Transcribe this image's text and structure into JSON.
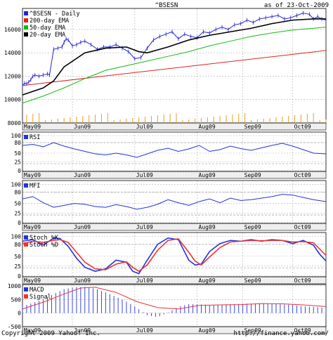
{
  "header": {
    "ticker": "^BSESN",
    "date_label": "as of 23-Oct-2009"
  },
  "footer": {
    "copyright": "Copyright 2009 Yahoo! Inc.",
    "url": "http://finance.yahoo.com/"
  },
  "colors": {
    "price": "#2222dd",
    "ema200": "#dd2222",
    "ema50": "#11bb11",
    "ema20": "#000000",
    "volume": "#e8a020",
    "indicator": "#2233dd",
    "signal": "#ee3333",
    "grid": "#b0b0b0",
    "frame": "#000000",
    "band": "#eeeeee"
  },
  "chart_data": [
    {
      "type": "line",
      "title": "^BSESN",
      "ylim": [
        8000,
        17800
      ],
      "yticks": [
        8000,
        10000,
        12000,
        14000,
        16000
      ],
      "months": [
        "May09",
        "Jun09",
        "Jul09",
        "Aug09",
        "Sep09",
        "Oct09"
      ],
      "legend": [
        "^BSESN - Daily",
        "200-day EMA",
        "50-day EMA",
        "20-day EMA"
      ],
      "series": [
        {
          "name": "^BSESN - Daily",
          "t": [
            0,
            1,
            2,
            3,
            4,
            5,
            6,
            8,
            10,
            12,
            13,
            15,
            17,
            19,
            20,
            21,
            22,
            24,
            26,
            28,
            30,
            33,
            36,
            39,
            42,
            45,
            48,
            51,
            54,
            57,
            60,
            63,
            66,
            69,
            72,
            75,
            78,
            81,
            84,
            87,
            90,
            93,
            96,
            99,
            102,
            105,
            108,
            111,
            114,
            117,
            120,
            123,
            126,
            129,
            132,
            135,
            138,
            140,
            142,
            144,
            146
          ],
          "values": [
            11200,
            11400,
            11350,
            11500,
            11700,
            12000,
            12100,
            12000,
            12100,
            12200,
            12100,
            14300,
            14400,
            14500,
            14900,
            15200,
            15100,
            14600,
            14700,
            14900,
            15000,
            14700,
            14300,
            14500,
            14500,
            14700,
            14400,
            14100,
            13500,
            13600,
            14400,
            15100,
            15400,
            15600,
            15800,
            15200,
            15600,
            15400,
            15300,
            15800,
            15700,
            16000,
            16200,
            16000,
            16400,
            16500,
            16800,
            16600,
            16900,
            17000,
            17100,
            17200,
            16900,
            17000,
            17200,
            17400,
            17300,
            16900,
            17100,
            16900,
            16800
          ]
        },
        {
          "name": "200-day EMA",
          "t": [
            0,
            146
          ],
          "values": [
            11200,
            14200
          ]
        },
        {
          "name": "50-day EMA",
          "t": [
            0,
            10,
            20,
            30,
            40,
            50,
            60,
            70,
            80,
            90,
            100,
            110,
            120,
            130,
            140,
            146
          ],
          "values": [
            9700,
            10300,
            11000,
            11800,
            12500,
            12900,
            13300,
            13700,
            14100,
            14600,
            15000,
            15400,
            15700,
            15950,
            16100,
            16200
          ]
        },
        {
          "name": "20-day EMA",
          "t": [
            0,
            10,
            15,
            20,
            30,
            40,
            50,
            56,
            60,
            70,
            80,
            90,
            100,
            110,
            120,
            130,
            140,
            146
          ],
          "values": [
            10400,
            11000,
            11600,
            12800,
            14000,
            14400,
            14500,
            14100,
            14000,
            14500,
            15100,
            15500,
            15800,
            16100,
            16500,
            16800,
            16900,
            16900
          ]
        }
      ]
    },
    {
      "type": "line",
      "title": "RSI",
      "ylim": [
        -2,
        110
      ],
      "yticks": [
        0,
        25,
        50,
        80,
        100
      ],
      "months": [
        "May09",
        "Jun09",
        "Jul09",
        "Aug09",
        "Sep09",
        "Oct09"
      ],
      "series": [
        {
          "name": "RSI",
          "t": [
            0,
            5,
            10,
            15,
            20,
            25,
            30,
            35,
            40,
            45,
            50,
            55,
            60,
            65,
            70,
            75,
            80,
            85,
            90,
            95,
            100,
            105,
            110,
            115,
            120,
            125,
            130,
            135,
            140,
            146
          ],
          "values": [
            72,
            75,
            68,
            80,
            70,
            62,
            55,
            48,
            45,
            50,
            45,
            38,
            48,
            58,
            64,
            55,
            62,
            72,
            55,
            60,
            70,
            63,
            58,
            65,
            72,
            78,
            70,
            60,
            50,
            48
          ]
        }
      ]
    },
    {
      "type": "line",
      "title": "MFI",
      "ylim": [
        -2,
        110
      ],
      "yticks": [
        0,
        25,
        50,
        80,
        100
      ],
      "months": [
        "May09",
        "Jun09",
        "Jul09",
        "Aug09",
        "Sep09",
        "Oct09"
      ],
      "series": [
        {
          "name": "MFI",
          "t": [
            0,
            5,
            10,
            15,
            20,
            25,
            30,
            35,
            40,
            45,
            50,
            55,
            60,
            65,
            70,
            75,
            80,
            85,
            90,
            95,
            100,
            105,
            110,
            115,
            120,
            125,
            130,
            135,
            140,
            146
          ],
          "values": [
            62,
            68,
            52,
            40,
            45,
            50,
            48,
            42,
            40,
            47,
            42,
            35,
            40,
            48,
            60,
            52,
            45,
            55,
            62,
            52,
            64,
            58,
            60,
            64,
            68,
            74,
            72,
            66,
            60,
            55
          ]
        }
      ]
    },
    {
      "type": "line",
      "title": "Stoch",
      "ylim": [
        -2,
        110
      ],
      "yticks": [
        0,
        25,
        50,
        80,
        100
      ],
      "months": [
        "May09",
        "Jun09",
        "Jul09",
        "Aug09",
        "Sep09",
        "Oct09"
      ],
      "legend": [
        "Stoch %K",
        "Stoch %D"
      ],
      "series": [
        {
          "name": "Stoch %K",
          "t": [
            0,
            5,
            10,
            15,
            18,
            22,
            26,
            30,
            35,
            40,
            45,
            50,
            53,
            56,
            60,
            65,
            70,
            75,
            80,
            83,
            86,
            90,
            95,
            100,
            105,
            110,
            115,
            120,
            125,
            130,
            135,
            140,
            143,
            146
          ],
          "values": [
            88,
            92,
            78,
            96,
            95,
            75,
            45,
            22,
            12,
            18,
            40,
            35,
            12,
            6,
            40,
            80,
            96,
            92,
            40,
            28,
            30,
            62,
            82,
            90,
            88,
            92,
            88,
            92,
            90,
            82,
            90,
            78,
            55,
            38
          ]
        },
        {
          "name": "Stoch %D",
          "t": [
            0,
            5,
            10,
            15,
            18,
            22,
            26,
            30,
            35,
            40,
            45,
            50,
            53,
            56,
            60,
            65,
            70,
            75,
            80,
            83,
            86,
            90,
            95,
            100,
            105,
            110,
            115,
            120,
            125,
            130,
            135,
            140,
            143,
            146
          ],
          "values": [
            82,
            88,
            85,
            90,
            92,
            85,
            60,
            35,
            18,
            16,
            30,
            36,
            22,
            12,
            28,
            65,
            90,
            94,
            60,
            38,
            28,
            48,
            72,
            86,
            88,
            90,
            89,
            90,
            90,
            86,
            87,
            84,
            68,
            52
          ]
        }
      ]
    },
    {
      "type": "bar",
      "title": "MACD",
      "ylim": [
        -500,
        1050
      ],
      "yticks": [
        -500,
        0,
        500,
        1000
      ],
      "months": [
        "May09",
        "Jun09",
        "Jul09",
        "Aug09",
        "Sep09",
        "Oct09"
      ],
      "legend": [
        "MACD",
        "Signal"
      ],
      "series": [
        {
          "name": "MACD",
          "t": [
            0,
            10,
            15,
            20,
            25,
            30,
            35,
            40,
            45,
            50,
            55,
            60,
            65,
            70,
            75,
            80,
            85,
            90,
            95,
            100,
            105,
            110,
            115,
            120,
            125,
            130,
            135,
            140,
            146
          ],
          "values": [
            250,
            500,
            700,
            880,
            950,
            960,
            900,
            760,
            600,
            420,
            200,
            -80,
            -150,
            20,
            230,
            330,
            320,
            300,
            310,
            330,
            340,
            350,
            360,
            340,
            320,
            300,
            250,
            230,
            180
          ]
        },
        {
          "name": "Signal",
          "t": [
            0,
            10,
            20,
            28,
            35,
            45,
            55,
            65,
            75,
            85,
            95,
            105,
            115,
            125,
            135,
            146
          ],
          "values": [
            150,
            400,
            700,
            920,
            950,
            760,
            420,
            200,
            150,
            280,
            300,
            310,
            350,
            340,
            300,
            240
          ]
        }
      ]
    }
  ]
}
